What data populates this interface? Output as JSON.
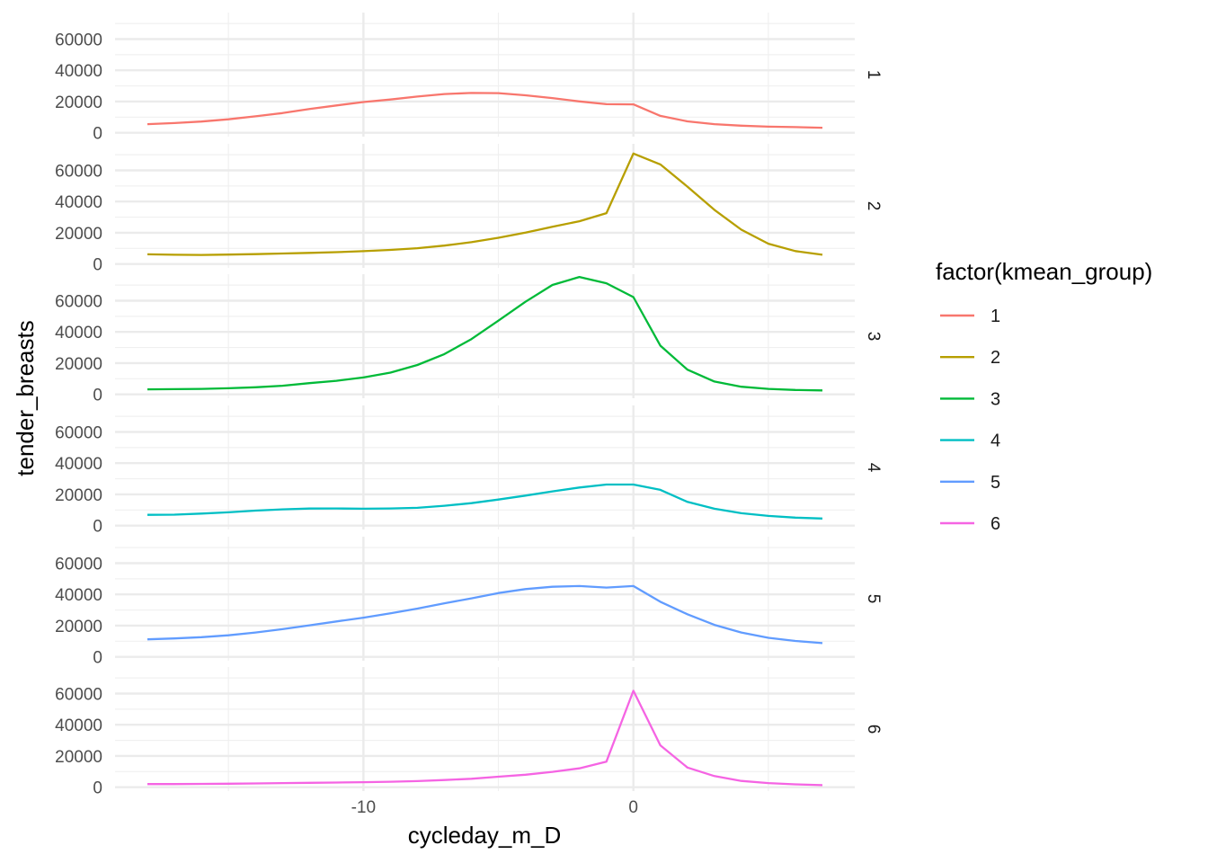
{
  "chart_data": {
    "type": "line",
    "layout": "facet_rows",
    "xlabel": "cycleday_m_D",
    "ylabel": "tender_breasts",
    "xlim": [
      -19.2,
      8.2
    ],
    "ylim": [
      -2500,
      77000
    ],
    "x_ticks": [
      -10,
      0
    ],
    "x_tick_labels": [
      "-10",
      "0"
    ],
    "y_ticks": [
      0,
      20000,
      40000,
      60000
    ],
    "y_tick_labels": [
      "0",
      "20000",
      "40000",
      "60000"
    ],
    "grid": true,
    "legend": {
      "title": "factor(kmean_group)",
      "placement": "right"
    },
    "x": [
      -18,
      -17,
      -16,
      -15,
      -14,
      -13,
      -12,
      -11,
      -10,
      -9,
      -8,
      -7,
      -6,
      -5,
      -4,
      -3,
      -2,
      -1,
      0,
      1,
      2,
      3,
      4,
      5,
      6,
      7
    ],
    "series": [
      {
        "name": "1",
        "facet_label": "1",
        "color": "#F8766D",
        "values": [
          5500,
          6200,
          7200,
          8600,
          10500,
          12600,
          15200,
          17500,
          19700,
          21300,
          23200,
          24800,
          25500,
          25400,
          24000,
          22200,
          20100,
          18300,
          18200,
          10800,
          7300,
          5500,
          4500,
          3900,
          3600,
          3200
        ]
      },
      {
        "name": "2",
        "facet_label": "2",
        "color": "#B79F00",
        "values": [
          6200,
          5900,
          5800,
          6000,
          6300,
          6700,
          7100,
          7600,
          8200,
          9000,
          10100,
          11800,
          14000,
          16800,
          20100,
          23800,
          27400,
          32600,
          70800,
          63800,
          49600,
          34700,
          22000,
          13000,
          8300,
          5900
        ]
      },
      {
        "name": "3",
        "facet_label": "3",
        "color": "#00BA38",
        "values": [
          3200,
          3300,
          3500,
          3900,
          4500,
          5500,
          7200,
          8700,
          10800,
          13900,
          18800,
          25800,
          35400,
          47200,
          59300,
          70100,
          75200,
          71200,
          62300,
          31200,
          15800,
          8200,
          4900,
          3500,
          2800,
          2500
        ]
      },
      {
        "name": "4",
        "facet_label": "4",
        "color": "#00BFC4",
        "values": [
          6900,
          7000,
          7700,
          8500,
          9600,
          10400,
          10900,
          11000,
          10800,
          11000,
          11400,
          12700,
          14400,
          16700,
          19200,
          21900,
          24400,
          26300,
          26300,
          22900,
          15200,
          10800,
          7900,
          6200,
          5100,
          4500
        ]
      },
      {
        "name": "5",
        "facet_label": "5",
        "color": "#619CFF",
        "values": [
          11200,
          11800,
          12600,
          13800,
          15600,
          17700,
          20200,
          22700,
          25100,
          27900,
          30900,
          34300,
          37500,
          40900,
          43400,
          44900,
          45400,
          44400,
          45400,
          35300,
          27300,
          20500,
          15600,
          12200,
          10200,
          8800
        ]
      },
      {
        "name": "6",
        "facet_label": "6",
        "color": "#F564E3",
        "values": [
          2000,
          2000,
          2100,
          2200,
          2400,
          2600,
          2800,
          3000,
          3200,
          3500,
          3900,
          4600,
          5400,
          6700,
          8000,
          9800,
          12100,
          16400,
          61800,
          26800,
          12600,
          7100,
          4000,
          2600,
          1800,
          1300
        ]
      }
    ]
  }
}
